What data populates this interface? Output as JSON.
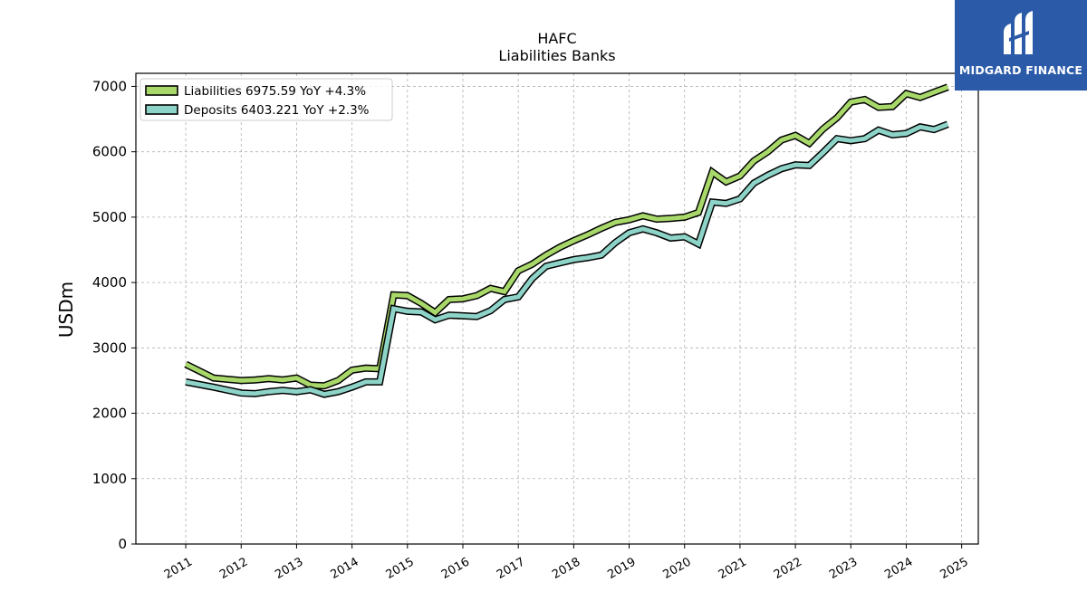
{
  "logo": {
    "text": "MIDGARD FINANCE",
    "background": "#2a5aa8"
  },
  "chart_data": {
    "type": "line",
    "title": "HAFC",
    "subtitle": "Liabilities Banks",
    "xlabel": "",
    "ylabel": "USDm",
    "ylim": [
      0,
      7200
    ],
    "xlim": [
      2010.1,
      2025.3
    ],
    "yticks": [
      0,
      1000,
      2000,
      3000,
      4000,
      5000,
      6000,
      7000
    ],
    "xticks": [
      "2011",
      "2012",
      "2013",
      "2014",
      "2015",
      "2016",
      "2017",
      "2018",
      "2019",
      "2020",
      "2021",
      "2022",
      "2023",
      "2024",
      "2025"
    ],
    "grid": true,
    "legend_position": "top-left",
    "x": [
      2011.0,
      2011.5,
      2012.0,
      2012.25,
      2012.5,
      2012.75,
      2013.0,
      2013.25,
      2013.5,
      2013.75,
      2014.0,
      2014.25,
      2014.5,
      2014.75,
      2015.0,
      2015.25,
      2015.5,
      2015.75,
      2016.0,
      2016.25,
      2016.5,
      2016.75,
      2017.0,
      2017.25,
      2017.5,
      2017.75,
      2018.0,
      2018.25,
      2018.5,
      2018.75,
      2019.0,
      2019.25,
      2019.5,
      2019.75,
      2020.0,
      2020.25,
      2020.5,
      2020.75,
      2021.0,
      2021.25,
      2021.5,
      2021.75,
      2022.0,
      2022.25,
      2022.5,
      2022.75,
      2023.0,
      2023.25,
      2023.5,
      2023.75,
      2024.0,
      2024.25,
      2024.5,
      2024.75
    ],
    "series": [
      {
        "name": "Liabilities",
        "legend_label": "Liabilities  6975.59 YoY +4.3%",
        "color": "#a8d86a",
        "values": [
          2750,
          2540,
          2500,
          2510,
          2530,
          2510,
          2540,
          2430,
          2420,
          2500,
          2660,
          2690,
          2680,
          3810,
          3800,
          3680,
          3540,
          3740,
          3750,
          3800,
          3910,
          3860,
          4180,
          4280,
          4420,
          4540,
          4640,
          4730,
          4830,
          4920,
          4960,
          5020,
          4970,
          4980,
          5000,
          5070,
          5690,
          5540,
          5630,
          5860,
          6000,
          6180,
          6250,
          6130,
          6350,
          6520,
          6760,
          6800,
          6680,
          6690,
          6890,
          6830,
          6910,
          6990
        ]
      },
      {
        "name": "Deposits",
        "legend_label": "Deposits  6403.221 YoY +2.3%",
        "color": "#8dd3c7",
        "values": [
          2480,
          2400,
          2310,
          2300,
          2330,
          2350,
          2330,
          2360,
          2290,
          2330,
          2400,
          2480,
          2480,
          3600,
          3560,
          3550,
          3430,
          3500,
          3490,
          3480,
          3570,
          3740,
          3780,
          4060,
          4250,
          4300,
          4350,
          4380,
          4420,
          4610,
          4760,
          4820,
          4760,
          4680,
          4700,
          4590,
          5230,
          5210,
          5280,
          5520,
          5640,
          5740,
          5800,
          5790,
          5990,
          6200,
          6170,
          6200,
          6330,
          6260,
          6280,
          6380,
          6340,
          6420
        ]
      }
    ]
  }
}
